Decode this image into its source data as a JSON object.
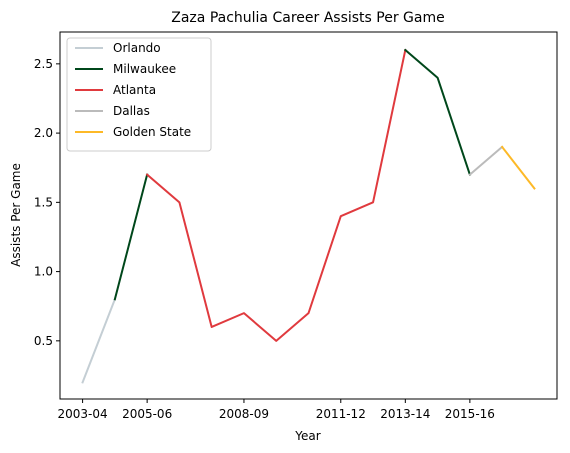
{
  "chart_data": {
    "type": "line",
    "title": "Zaza Pachulia Career Assists Per Game",
    "xlabel": "Year",
    "ylabel": "Assists Per Game",
    "x": [
      "2003-04",
      "2004-05",
      "2005-06",
      "2006-07",
      "2007-08",
      "2008-09",
      "2009-10",
      "2010-11",
      "2011-12",
      "2012-13",
      "2013-14",
      "2014-15",
      "2015-16",
      "2016-17",
      "2017-18"
    ],
    "x_tick_labels": [
      "2003-04",
      "2005-06",
      "2008-09",
      "2011-12",
      "2013-14",
      "2015-16"
    ],
    "y_ticks": [
      0.5,
      1.0,
      1.5,
      2.0,
      2.5
    ],
    "y_tick_labels": [
      "0.5",
      "1.0",
      "1.5",
      "2.0",
      "2.5"
    ],
    "ylim": [
      0.08,
      2.73
    ],
    "grid": false,
    "legend_position": "top-left",
    "series": [
      {
        "name": "Orlando",
        "color": "#c4ced4",
        "x": [
          "2003-04",
          "2004-05"
        ],
        "values": [
          0.2,
          0.8
        ]
      },
      {
        "name": "Milwaukee",
        "color": "#00471b",
        "x": [
          "2004-05",
          "2005-06"
        ],
        "values": [
          0.8,
          1.7
        ]
      },
      {
        "name": "Atlanta",
        "color": "#e03a3e",
        "x": [
          "2005-06",
          "2006-07",
          "2007-08",
          "2008-09",
          "2009-10",
          "2010-11",
          "2011-12",
          "2012-13",
          "2013-14"
        ],
        "values": [
          1.7,
          1.5,
          0.6,
          0.7,
          0.5,
          0.7,
          1.4,
          1.5,
          2.6
        ]
      },
      {
        "name": "Milwaukee",
        "color": "#00471b",
        "x": [
          "2013-14",
          "2014-15",
          "2015-16"
        ],
        "values": [
          2.6,
          2.4,
          1.7
        ],
        "legend": false
      },
      {
        "name": "Dallas",
        "color": "#bbbbbb",
        "x": [
          "2015-16",
          "2016-17"
        ],
        "values": [
          1.7,
          1.9
        ]
      },
      {
        "name": "Golden State",
        "color": "#fdb927",
        "x": [
          "2016-17",
          "2017-18"
        ],
        "values": [
          1.9,
          1.6
        ]
      }
    ]
  }
}
